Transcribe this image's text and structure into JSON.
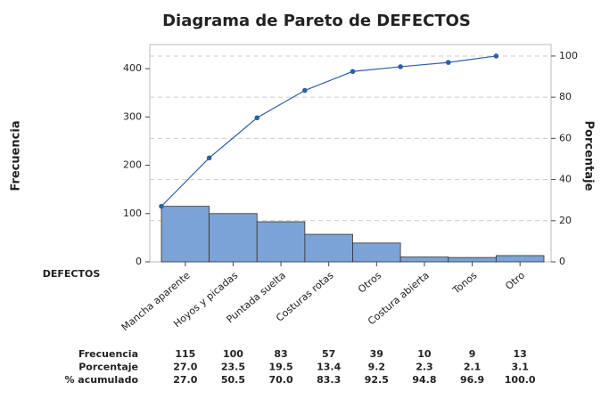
{
  "chart_data": {
    "type": "pareto",
    "title": "Diagrama de Pareto de DEFECTOS",
    "x_label": "DEFECTOS",
    "y_label": "Frecuencia",
    "y2_label": "Porcentaje",
    "categories": [
      "Mancha aparente",
      "Hoyos y picadas",
      "Puntada suelta",
      "Costuras rotas",
      "Otros",
      "Costura abierta",
      "Tonos",
      "Otro"
    ],
    "series": [
      {
        "name": "Frecuencia",
        "color": "#7ba3d6",
        "values": [
          115,
          100,
          83,
          57,
          39,
          10,
          9,
          13
        ]
      },
      {
        "name": "Porcentaje",
        "values": [
          27.0,
          23.5,
          19.5,
          13.4,
          9.2,
          2.3,
          2.1,
          3.1
        ],
        "value_labels": [
          "27.0",
          "23.5",
          "19.5",
          "13.4",
          "9.2",
          "2.3",
          "2.1",
          "3.1"
        ]
      },
      {
        "name": "% acumulado",
        "axis": "y2",
        "color": "#2d5fa8",
        "values": [
          27.0,
          50.5,
          70.0,
          83.3,
          92.5,
          94.8,
          96.9,
          100.0
        ],
        "value_labels": [
          "27.0",
          "50.5",
          "70.0",
          "83.3",
          "92.5",
          "94.8",
          "96.9",
          "100.0"
        ]
      }
    ],
    "ylim": [
      0,
      450
    ],
    "yticks": [
      0,
      100,
      200,
      300,
      400
    ],
    "y2lim": [
      0,
      105.6
    ],
    "y2ticks": [
      0,
      20,
      40,
      60,
      80,
      100
    ],
    "grid": true
  }
}
